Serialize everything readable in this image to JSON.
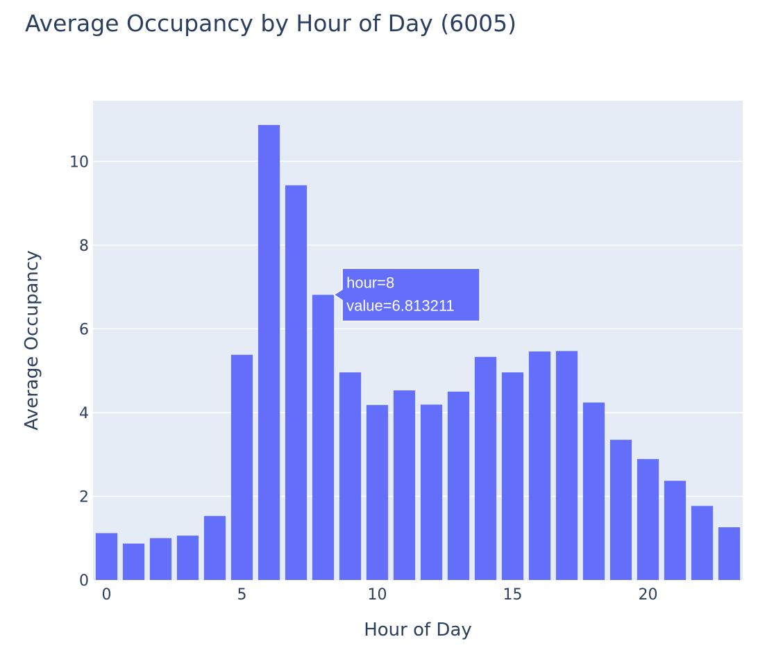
{
  "chart_data": {
    "type": "bar",
    "title": "Average Occupancy by Hour of Day (6005)",
    "xlabel": "Hour of Day",
    "ylabel": "Average Occupancy",
    "x": [
      0,
      1,
      2,
      3,
      4,
      5,
      6,
      7,
      8,
      9,
      10,
      11,
      12,
      13,
      14,
      15,
      16,
      17,
      18,
      19,
      20,
      21,
      22,
      23
    ],
    "values": [
      1.12,
      0.87,
      1.0,
      1.06,
      1.53,
      5.38,
      10.87,
      9.43,
      6.813211,
      4.96,
      4.18,
      4.53,
      4.19,
      4.5,
      5.33,
      4.96,
      5.46,
      5.47,
      4.24,
      3.35,
      2.89,
      2.37,
      1.77,
      1.26
    ],
    "xlim": [
      -0.5,
      23.5
    ],
    "ylim": [
      0,
      11.45
    ],
    "x_ticks": [
      0,
      5,
      10,
      15,
      20
    ],
    "y_ticks": [
      0,
      2,
      4,
      6,
      8,
      10
    ],
    "grid": true,
    "colors": {
      "bar": "#636efa",
      "plot_background": "#e5ecf6",
      "grid": "#ffffff",
      "text": "#2a3f5f"
    },
    "hover": {
      "hour_text": "hour=8",
      "value_text": "value=6.813211"
    }
  }
}
